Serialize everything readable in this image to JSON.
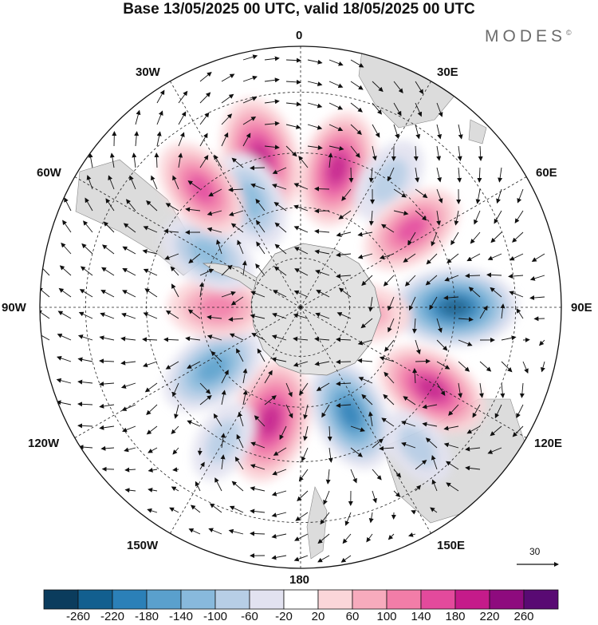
{
  "title": "Base 13/05/2025 00 UTC, valid 18/05/2025 00 UTC",
  "brand": {
    "name": "MODES",
    "mark": "©"
  },
  "map": {
    "projection": "south-polar-stereographic",
    "center_marker": "+",
    "longitude_labels": [
      {
        "id": "0",
        "text": "0"
      },
      {
        "id": "30e",
        "text": "30E"
      },
      {
        "id": "60e",
        "text": "60E"
      },
      {
        "id": "90e",
        "text": "90E"
      },
      {
        "id": "120e",
        "text": "120E"
      },
      {
        "id": "150e",
        "text": "150E"
      },
      {
        "id": "180",
        "text": "180"
      },
      {
        "id": "150w",
        "text": "150W"
      },
      {
        "id": "120w",
        "text": "120W"
      },
      {
        "id": "90w",
        "text": "90W"
      },
      {
        "id": "60w",
        "text": "60W"
      },
      {
        "id": "30w",
        "text": "30W"
      }
    ],
    "anomaly_centers": [
      {
        "sign": "positive",
        "lon": -15,
        "lat": -45,
        "value": 220
      },
      {
        "sign": "positive",
        "lon": 15,
        "lat": -48,
        "value": 200
      },
      {
        "sign": "negative",
        "lon": -25,
        "lat": -55,
        "value": -140
      },
      {
        "sign": "negative",
        "lon": 35,
        "lat": -45,
        "value": -100
      },
      {
        "sign": "positive",
        "lon": 55,
        "lat": -50,
        "value": 160
      },
      {
        "sign": "negative",
        "lon": 90,
        "lat": -45,
        "value": -240
      },
      {
        "sign": "positive",
        "lon": 122,
        "lat": -45,
        "value": 200
      },
      {
        "sign": "negative",
        "lon": 155,
        "lat": -55,
        "value": -200
      },
      {
        "sign": "positive",
        "lon": -165,
        "lat": -55,
        "value": 230
      },
      {
        "sign": "negative",
        "lon": -125,
        "lat": -58,
        "value": -180
      },
      {
        "sign": "positive",
        "lon": -90,
        "lat": -65,
        "value": 140
      },
      {
        "sign": "negative",
        "lon": -60,
        "lat": -58,
        "value": -140
      },
      {
        "sign": "positive",
        "lon": -40,
        "lat": -45,
        "value": 160
      },
      {
        "sign": "positive",
        "lon": 95,
        "lat": -70,
        "value": 100
      },
      {
        "sign": "negative",
        "lon": -150,
        "lat": -45,
        "value": -80
      },
      {
        "sign": "negative",
        "lon": 140,
        "lat": -38,
        "value": -80
      }
    ]
  },
  "vector_scale": {
    "value": "30"
  },
  "colorbar": {
    "colors": [
      "#0b3c5d",
      "#125f8f",
      "#2b80b8",
      "#5aa0cd",
      "#88b9dc",
      "#b7cee6",
      "#e2e2f0",
      "#ffffff",
      "#fbd6d9",
      "#f7abbd",
      "#f27da8",
      "#e34a9c",
      "#c51b8a",
      "#8e0b7e",
      "#590a73"
    ],
    "labels": [
      "-260",
      "-220",
      "-180",
      "-140",
      "-100",
      "-60",
      "-20",
      "20",
      "60",
      "100",
      "140",
      "180",
      "220",
      "260"
    ]
  }
}
